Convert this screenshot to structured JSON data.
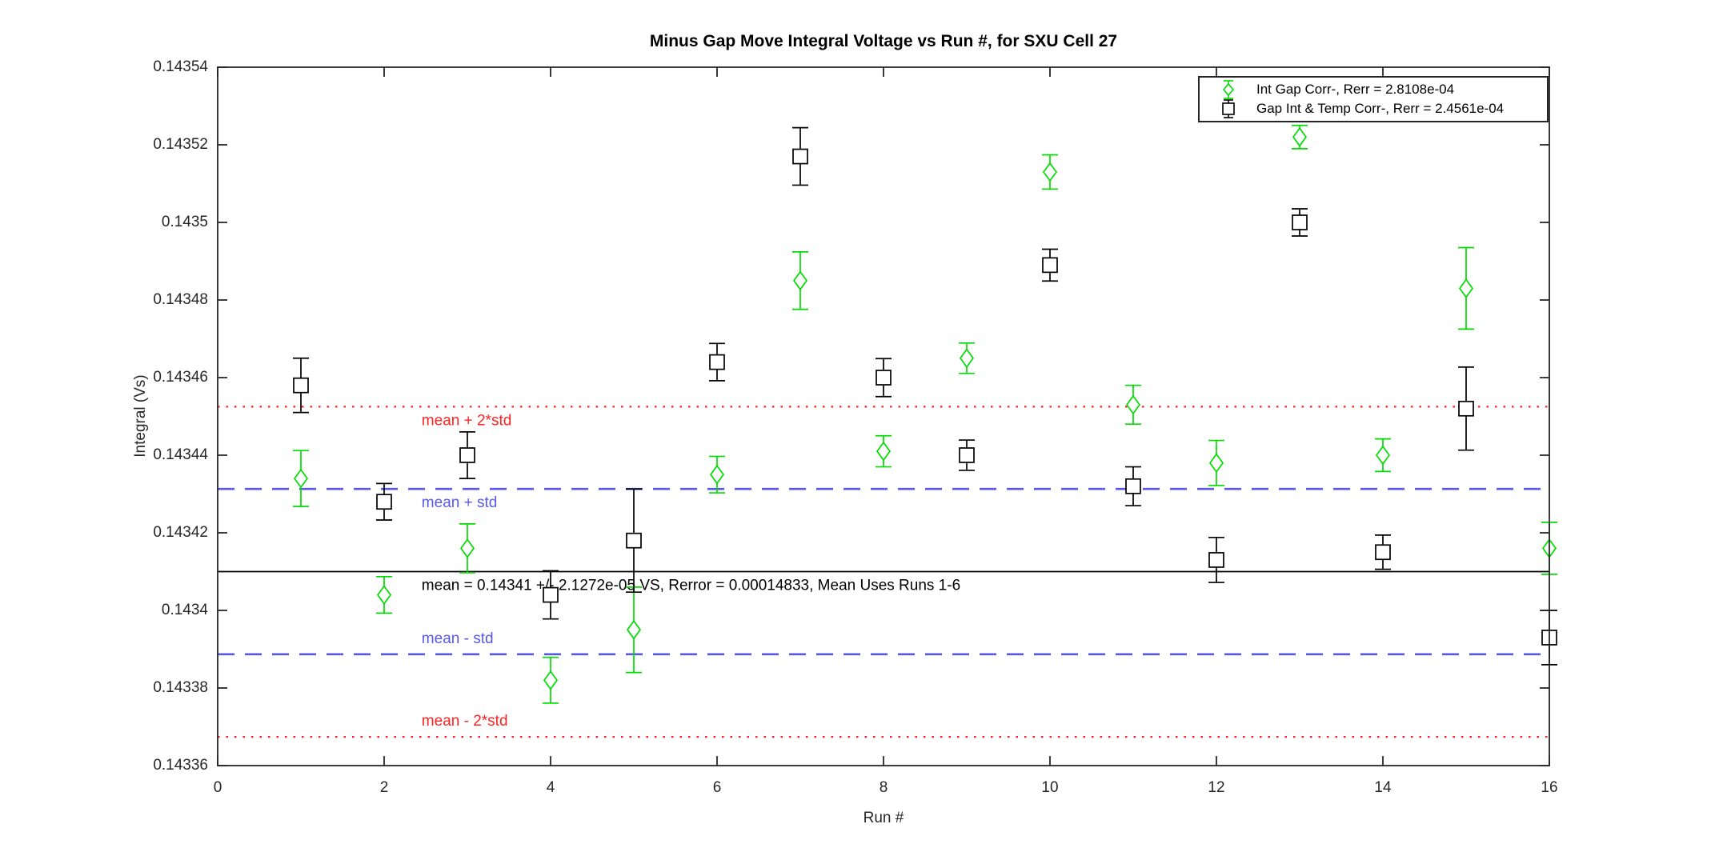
{
  "figure": {
    "title": "Minus Gap Move Integral Voltage vs Run #, for SXU Cell 27",
    "background": "#ffffff"
  },
  "axes": {
    "xlabel": "Run #",
    "ylabel": "Integral (Vs)",
    "axis_color": "#262626"
  },
  "legend": {
    "items": [
      {
        "label": "Int Gap Corr-, Rerr = 2.8108e-04",
        "marker": "diamond",
        "color": "#00dd00"
      },
      {
        "label": "Gap Int & Temp Corr-, Rerr = 2.4561e-04",
        "marker": "square",
        "color": "#000000"
      }
    ]
  },
  "chart_data": {
    "type": "scatter",
    "subtype": "errorbar",
    "title": "Minus Gap Move Integral Voltage vs Run #, for SXU Cell 27",
    "xlabel": "Run #",
    "ylabel": "Integral (Vs)",
    "xlim": [
      0,
      16
    ],
    "ylim": [
      0.14336,
      0.14354
    ],
    "grid": false,
    "legend_position": "top-right",
    "xtick_values": [
      0,
      2,
      4,
      6,
      8,
      10,
      12,
      14,
      16
    ],
    "xtick_labels": [
      "0",
      "2",
      "4",
      "6",
      "8",
      "10",
      "12",
      "14",
      "16"
    ],
    "ytick_values": [
      0.14336,
      0.14338,
      0.1434,
      0.14342,
      0.14344,
      0.14346,
      0.14348,
      0.1435,
      0.14352,
      0.14354
    ],
    "ytick_labels": [
      "0.14336",
      "0.14338",
      "0.1434",
      "0.14342",
      "0.14344",
      "0.14346",
      "0.14348",
      "0.1435",
      "0.14352",
      "0.14354"
    ],
    "x": [
      1,
      2,
      3,
      4,
      5,
      6,
      7,
      8,
      9,
      10,
      11,
      12,
      13,
      14,
      15,
      16
    ],
    "series": [
      {
        "name": "Int Gap Corr-, Rerr = 2.8108e-04",
        "marker": "diamond",
        "color": "#00dd00",
        "values": [
          0.143434,
          0.143404,
          0.143416,
          0.143382,
          0.143395,
          0.143435,
          0.143485,
          0.143441,
          0.143465,
          0.143513,
          0.143453,
          0.143438,
          0.143522,
          0.14344,
          0.143483,
          0.143416
        ],
        "errors": [
          7.2e-06,
          4.7e-06,
          6.3e-06,
          5.9e-06,
          1.1e-05,
          4.7e-06,
          7.4e-06,
          4e-06,
          3.9e-06,
          4.4e-06,
          5e-06,
          5.8e-06,
          3e-06,
          4.2e-06,
          1.05e-05,
          6.7e-06
        ]
      },
      {
        "name": "Gap Int & Temp Corr-, Rerr = 2.4561e-04",
        "marker": "square",
        "color": "#000000",
        "values": [
          0.143458,
          0.143428,
          0.14344,
          0.143404,
          0.143418,
          0.143464,
          0.143517,
          0.14346,
          0.14344,
          0.143489,
          0.143432,
          0.143413,
          0.1435,
          0.143415,
          0.143452,
          0.143393
        ],
        "errors": [
          7e-06,
          4.7e-06,
          6e-06,
          6.2e-06,
          1.33e-05,
          4.8e-06,
          7.4e-06,
          4.9e-06,
          3.9e-06,
          4.1e-06,
          5e-06,
          5.8e-06,
          3.5e-06,
          4.4e-06,
          1.07e-05,
          7e-06
        ]
      }
    ],
    "ref_lines": [
      {
        "label": "mean + 2*std",
        "value": 0.1434525,
        "style": "dotted",
        "color": "#ff2222",
        "label_side": "below"
      },
      {
        "label": "mean + std",
        "value": 0.1434313,
        "style": "dashed",
        "color": "#5858e8",
        "label_side": "below"
      },
      {
        "label": "mean = 0.14341 +/- 2.1272e-05 VS, Rerror = 0.00014833, Mean Uses Runs 1-6",
        "value": 0.14341,
        "style": "solid",
        "color": "#000000",
        "label_side": "below"
      },
      {
        "label": "mean - std",
        "value": 0.1433887,
        "style": "dashed",
        "color": "#5858e8",
        "label_side": "above"
      },
      {
        "label": "mean - 2*std",
        "value": 0.1433674,
        "style": "dotted",
        "color": "#ff2222",
        "label_side": "above"
      }
    ],
    "ref_label_x": 2.45
  }
}
